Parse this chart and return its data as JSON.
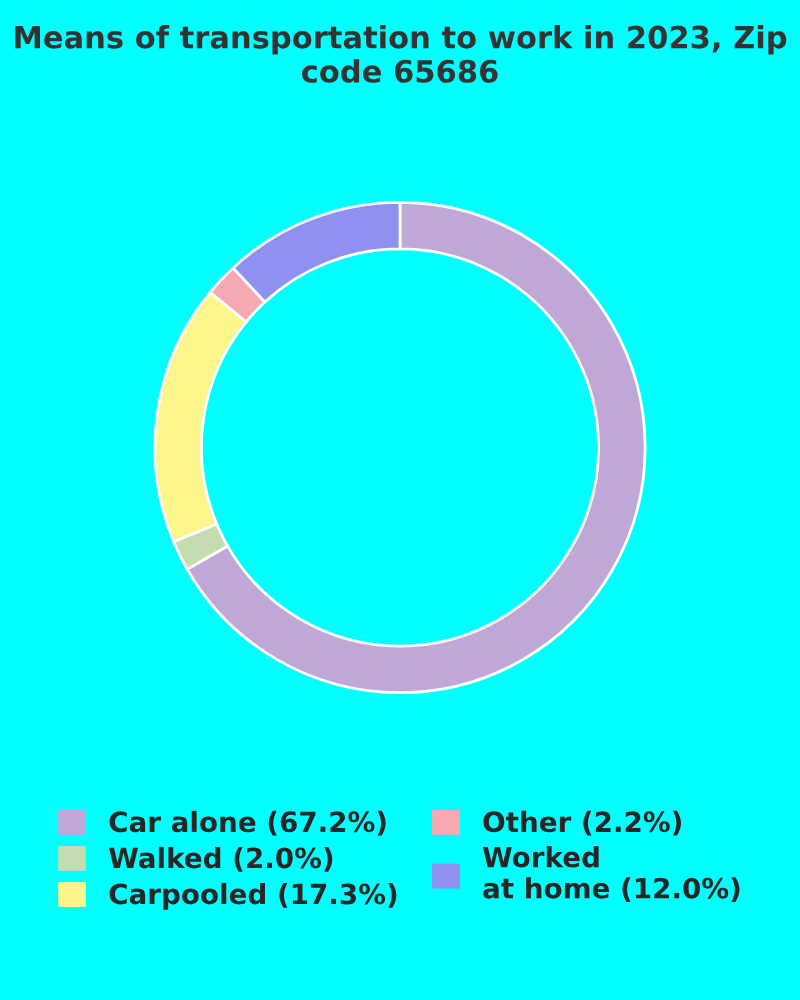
{
  "chart_data": {
    "type": "donut",
    "title": "Means of transportation to work in 2023, Zip code 65686",
    "categories": [
      "Car alone (67.2%)",
      "Walked (2.0%)",
      "Carpooled (17.3%)",
      "Other (2.2%)",
      "Worked\nat home (12.0%)"
    ],
    "values": [
      67.2,
      2.0,
      17.3,
      2.2,
      12.0
    ],
    "colors": [
      "#bfa8d8",
      "#c5dbb0",
      "#fdf68a",
      "#f5a9b0",
      "#9090f0"
    ],
    "legend": "bottom"
  }
}
